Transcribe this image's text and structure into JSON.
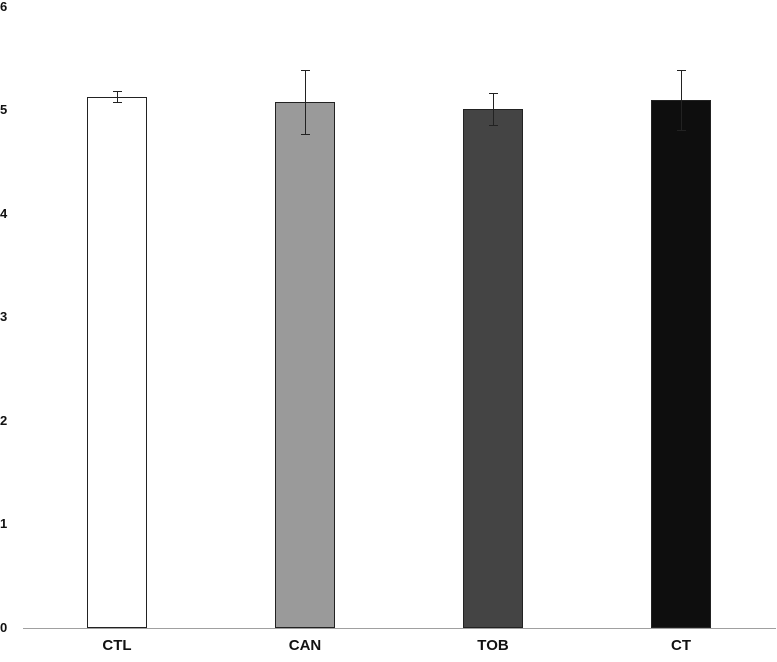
{
  "chart_data": {
    "type": "bar",
    "title": "",
    "xlabel": "",
    "ylabel": "",
    "ylim": [
      0,
      6
    ],
    "yticks": [
      0,
      1,
      2,
      3,
      4,
      5,
      6
    ],
    "grid": false,
    "legend": null,
    "categories": [
      "CTL",
      "CAN",
      "TOB",
      "CT"
    ],
    "values": [
      5.13,
      5.08,
      5.01,
      5.1
    ],
    "errors": [
      0.05,
      0.31,
      0.15,
      0.29
    ],
    "colors": [
      "#ffffff",
      "#9a9a9a",
      "#444444",
      "#0e0e0e"
    ]
  },
  "labels": {
    "yticks": [
      "0",
      "1",
      "2",
      "3",
      "4",
      "5",
      "6"
    ],
    "xticks": [
      "CTL",
      "CAN",
      "TOB",
      "CT"
    ]
  }
}
